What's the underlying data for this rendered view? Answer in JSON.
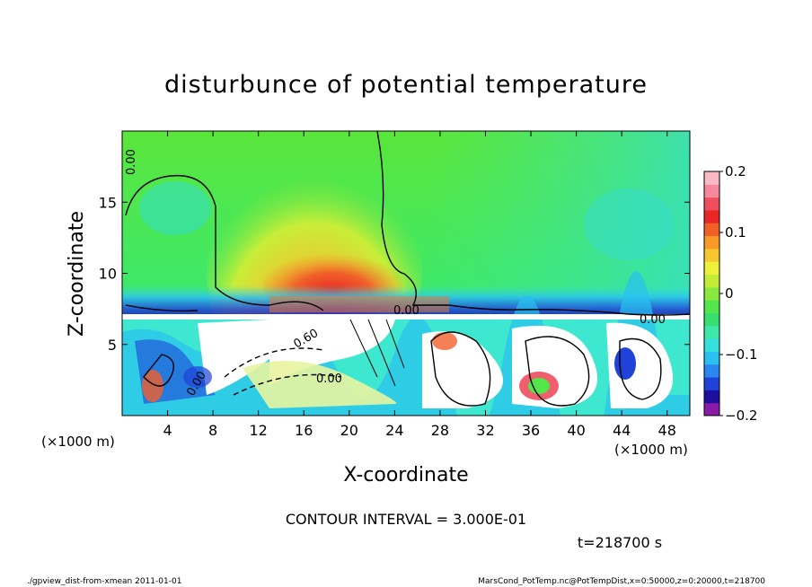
{
  "title": "disturbunce of potential temperature",
  "x_axis_title": "X-coordinate",
  "y_axis_title": "Z-coordinate",
  "x_unit_left": "(×1000 m)",
  "x_unit_right": "(×1000 m)",
  "contour_interval": "CONTOUR INTERVAL = 3.000E-01",
  "time_label": "t=218700 s",
  "footer_left": "./gpview_dist-from-xmean  2011-01-01",
  "footer_right": "MarsCond_PotTemp.nc@PotTempDist,x=0:50000,z=0:20000,t=218700",
  "chart_data": {
    "type": "heatmap",
    "title": "disturbunce of potential temperature",
    "xlabel": "X-coordinate",
    "ylabel": "Z-coordinate",
    "xlim": [
      0,
      50
    ],
    "ylim": [
      0,
      20
    ],
    "x_ticks": [
      "4",
      "8",
      "12",
      "16",
      "20",
      "24",
      "28",
      "32",
      "36",
      "40",
      "44",
      "48"
    ],
    "x_tick_values": [
      4,
      8,
      12,
      16,
      20,
      24,
      28,
      32,
      36,
      40,
      44,
      48
    ],
    "y_ticks": [
      "5",
      "10",
      "15"
    ],
    "y_tick_values": [
      5,
      10,
      15
    ],
    "colorbar": {
      "min": -0.2,
      "max": 0.2,
      "ticks": [
        "0.2",
        "0.1",
        "0",
        "−0.1",
        "−0.2"
      ],
      "tick_values": [
        0.2,
        0.1,
        0,
        -0.1,
        -0.2
      ],
      "colors": [
        "#8a1aa8",
        "#1c0f9e",
        "#1f43d9",
        "#2a86f0",
        "#2ac0f0",
        "#36e0dc",
        "#3ee8a8",
        "#36e070",
        "#52e64a",
        "#8ae83e",
        "#c2ec36",
        "#eef03a",
        "#f6c730",
        "#f79a28",
        "#f2602a",
        "#e82626",
        "#f04e5e",
        "#f5889a",
        "#fbb9c6"
      ]
    },
    "contour_labels": [
      "0.00",
      "0.00",
      "0.00",
      "0.60",
      "0.00",
      "0.00"
    ],
    "contour_interval": 0.3,
    "time_s": 218700
  }
}
